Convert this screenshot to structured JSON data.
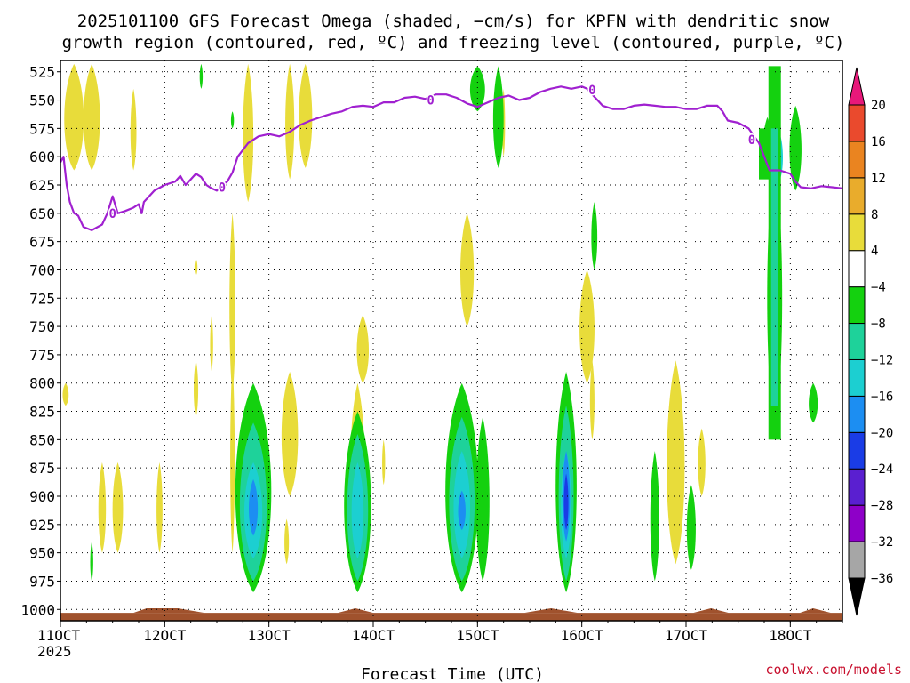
{
  "chart_data": {
    "type": "heatmap",
    "title_line1": "2025101100 GFS Forecast Omega (shaded, −cm/s) for KPFN with dendritic snow",
    "title_line2": "growth region (contoured, red, ºC) and freezing level (contoured, purple, ºC)",
    "xlabel": "Forecast Time (UTC)",
    "xlim": [
      11.0,
      18.5
    ],
    "ylim": [
      1010,
      515
    ],
    "x_ticks": [
      {
        "x": 11,
        "label": "11OCT",
        "sub": "2025"
      },
      {
        "x": 12,
        "label": "12OCT"
      },
      {
        "x": 13,
        "label": "13OCT"
      },
      {
        "x": 14,
        "label": "14OCT"
      },
      {
        "x": 15,
        "label": "15OCT"
      },
      {
        "x": 16,
        "label": "16OCT"
      },
      {
        "x": 17,
        "label": "17OCT"
      },
      {
        "x": 18,
        "label": "18OCT"
      }
    ],
    "y_ticks": [
      525,
      550,
      575,
      600,
      625,
      650,
      675,
      700,
      725,
      750,
      775,
      800,
      825,
      850,
      875,
      900,
      925,
      950,
      975,
      1000
    ],
    "colorbar": {
      "bounds": [
        -36,
        -32,
        -28,
        -24,
        -20,
        -16,
        -12,
        -8,
        -4,
        4,
        8,
        12,
        16,
        20
      ],
      "labels": [
        "-36",
        "-32",
        "-28",
        "-24",
        "-20",
        "-16",
        "-12",
        "-8",
        "-4",
        "4",
        "8",
        "12",
        "16",
        "20"
      ],
      "label_display": [
        "−36",
        "−32",
        "−28",
        "−24",
        "−20",
        "−16",
        "−12",
        "−8",
        "−4",
        "4",
        "8",
        "12",
        "16",
        "20"
      ],
      "colors": [
        "#a6a6a6",
        "#8e00c8",
        "#5a1fd0",
        "#1a3ce6",
        "#1c8ef2",
        "#1ccfd1",
        "#1ed29a",
        "#14d10f",
        "#ffffff",
        "#e8dc3a",
        "#e9ac2c",
        "#ea8420",
        "#ea4a2d"
      ],
      "under_color": "#000000",
      "over_color": "#e8187a"
    },
    "freezing_level_label": "0",
    "freezing_level_color": "#a020d0",
    "freezing_level": {
      "x": [
        11.0,
        11.03,
        11.06,
        11.09,
        11.13,
        11.17,
        11.22,
        11.3,
        11.4,
        11.45,
        11.5,
        11.55,
        11.62,
        11.7,
        11.75,
        11.78,
        11.8,
        11.9,
        12.0,
        12.1,
        12.15,
        12.2,
        12.25,
        12.3,
        12.35,
        12.4,
        12.45,
        12.5,
        12.55,
        12.6,
        12.65,
        12.7,
        12.8,
        12.9,
        13.0,
        13.1,
        13.2,
        13.3,
        13.4,
        13.5,
        13.6,
        13.7,
        13.8,
        13.9,
        14.0,
        14.1,
        14.2,
        14.3,
        14.4,
        14.5,
        14.6,
        14.7,
        14.8,
        14.9,
        15.0,
        15.1,
        15.2,
        15.3,
        15.4,
        15.5,
        15.6,
        15.7,
        15.8,
        15.9,
        16.0,
        16.05,
        16.1,
        16.2,
        16.3,
        16.4,
        16.5,
        16.6,
        16.7,
        16.8,
        16.9,
        17.0,
        17.1,
        17.2,
        17.3,
        17.35,
        17.4,
        17.5,
        17.6,
        17.7,
        17.75,
        17.8,
        17.9,
        18.0,
        18.05,
        18.1,
        18.2,
        18.3,
        18.4,
        18.5
      ],
      "y": [
        605,
        600,
        625,
        640,
        650,
        652,
        662,
        665,
        660,
        650,
        635,
        650,
        648,
        645,
        642,
        650,
        640,
        630,
        625,
        622,
        617,
        625,
        620,
        615,
        618,
        625,
        628,
        630,
        625,
        622,
        614,
        600,
        588,
        582,
        580,
        582,
        578,
        572,
        568,
        565,
        562,
        560,
        556,
        555,
        556,
        552,
        552,
        548,
        547,
        549,
        545,
        545,
        548,
        553,
        556,
        552,
        548,
        546,
        550,
        548,
        543,
        540,
        538,
        540,
        538,
        540,
        545,
        555,
        558,
        558,
        555,
        554,
        555,
        556,
        556,
        558,
        558,
        555,
        555,
        560,
        568,
        570,
        575,
        588,
        600,
        612,
        612,
        615,
        622,
        627,
        628,
        626,
        627,
        628
      ]
    },
    "terrain_color": "#a0522d",
    "watermark": "coolwx.com/models"
  }
}
